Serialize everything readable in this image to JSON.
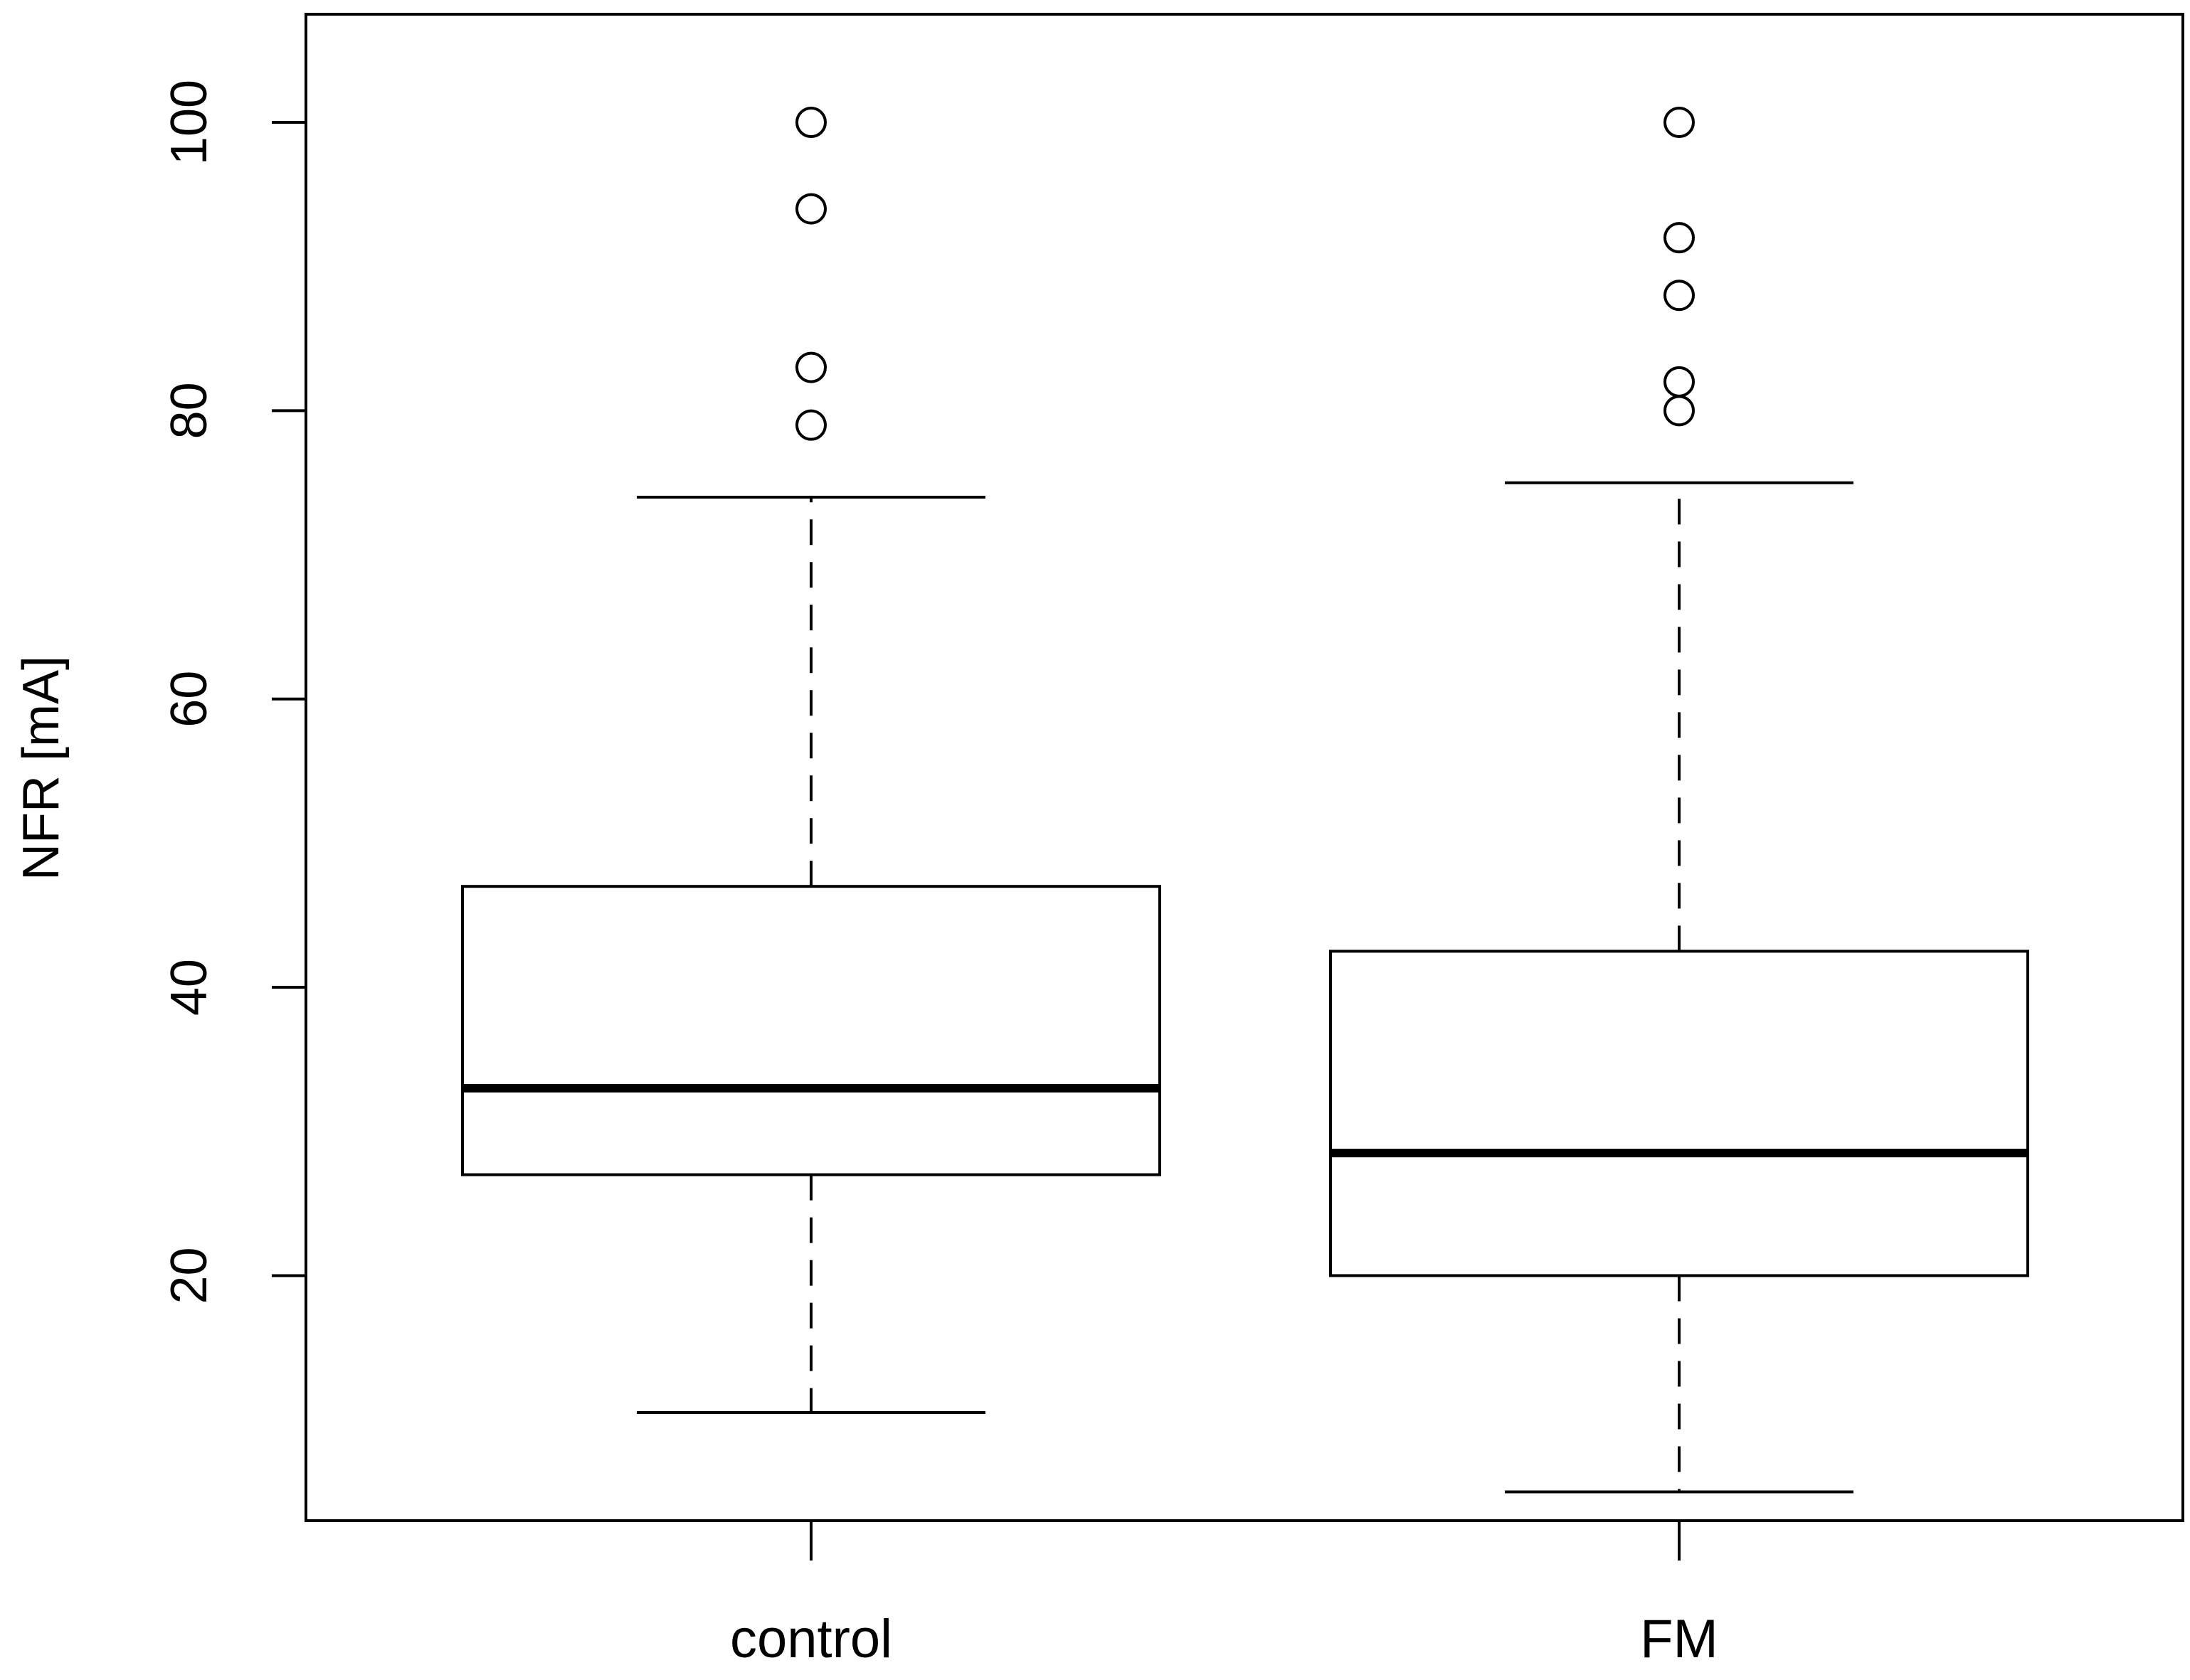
{
  "chart_data": {
    "type": "boxplot",
    "title": "",
    "xlabel": "",
    "ylabel": "NFR [mA]",
    "ylim": [
      3,
      107.5
    ],
    "yticks": [
      20,
      40,
      60,
      80,
      100
    ],
    "ytick_labels": [
      "20",
      "40",
      "60",
      "80",
      "100"
    ],
    "grid": false,
    "legend": "none",
    "categories": [
      "control",
      "FM"
    ],
    "boxes": [
      {
        "category": "control",
        "whisker_low": 10.5,
        "q1": 27,
        "median": 33,
        "q3": 47,
        "whisker_high": 74,
        "outliers": [
          79,
          83,
          94,
          100
        ]
      },
      {
        "category": "FM",
        "whisker_low": 5,
        "q1": 20,
        "median": 28.5,
        "q3": 42.5,
        "whisker_high": 75,
        "outliers": [
          80,
          82,
          88,
          92,
          100
        ]
      }
    ],
    "colors": {
      "stroke": "#000000",
      "box_fill": "#ffffff",
      "background": "#ffffff"
    }
  }
}
